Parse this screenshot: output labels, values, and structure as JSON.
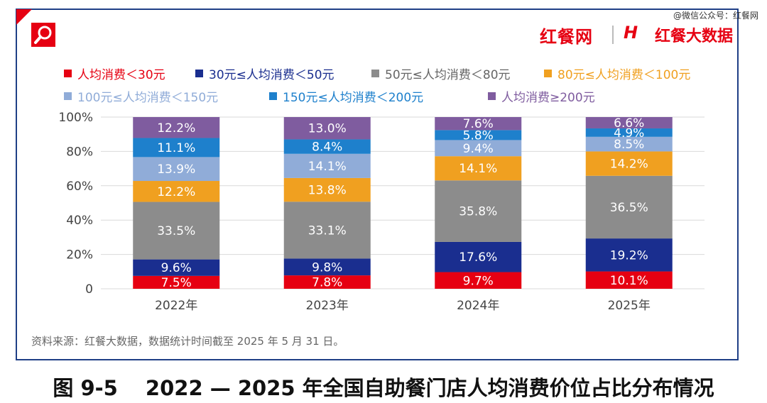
{
  "watermark_source": "@微信公众号：红餐网",
  "brand": {
    "left": "红餐网",
    "right_mark": "H",
    "right": "红餐大数据"
  },
  "legend": [
    {
      "label": "人均消费＜30元",
      "color": "#e60012"
    },
    {
      "label": "30元≤人均消费＜50元",
      "color": "#1a2e8f"
    },
    {
      "label": "50元≤人均消费＜80元",
      "color": "#8c8c8c"
    },
    {
      "label": "80元≤人均消费＜100元",
      "color": "#f0a020"
    },
    {
      "label": "100元≤人均消费＜150元",
      "color": "#90acd8"
    },
    {
      "label": "150元≤人均消费＜200元",
      "color": "#1e80cc"
    },
    {
      "label": "人均消费≥200元",
      "color": "#7f5c9f"
    }
  ],
  "chart_data": {
    "type": "bar",
    "stacked": true,
    "categories": [
      "2022年",
      "2023年",
      "2024年",
      "2025年"
    ],
    "series": [
      {
        "name": "人均消费＜30元",
        "values": [
          7.5,
          7.8,
          9.7,
          10.1
        ],
        "labels": [
          "7.5%",
          "7.8%",
          "9.7%",
          "10.1%"
        ]
      },
      {
        "name": "30元≤人均消费＜50元",
        "values": [
          9.6,
          9.8,
          17.6,
          19.2
        ],
        "labels": [
          "9.6%",
          "9.8%",
          "17.6%",
          "19.2%"
        ]
      },
      {
        "name": "50元≤人均消费＜80元",
        "values": [
          33.5,
          33.1,
          35.8,
          36.5
        ],
        "labels": [
          "33.5%",
          "33.1%",
          "35.8%",
          "36.5%"
        ]
      },
      {
        "name": "80元≤人均消费＜100元",
        "values": [
          12.2,
          13.8,
          14.1,
          14.2
        ],
        "labels": [
          "12.2%",
          "13.8%",
          "14.1%",
          "14.2%"
        ]
      },
      {
        "name": "100元≤人均消费＜150元",
        "values": [
          13.9,
          14.1,
          9.4,
          8.5
        ],
        "labels": [
          "13.9%",
          "14.1%",
          "9.4%",
          "8.5%"
        ]
      },
      {
        "name": "150元≤人均消费＜200元",
        "values": [
          11.1,
          8.4,
          5.8,
          4.9
        ],
        "labels": [
          "11.1%",
          "8.4%",
          "5.8%",
          "4.9%"
        ]
      },
      {
        "name": "人均消费≥200元",
        "values": [
          12.2,
          13.0,
          7.6,
          6.6
        ],
        "labels": [
          "12.2%",
          "13.0%",
          "7.6%",
          "6.6%"
        ]
      }
    ],
    "y_ticks": [
      "0",
      "20%",
      "40%",
      "60%",
      "80%",
      "100%"
    ],
    "ylim": [
      0,
      100
    ],
    "grid": true,
    "legend_position": "top"
  },
  "footnote": "资料来源：红餐大数据，数据统计时间截至 2025 年 5 月 31 日。",
  "caption": "图 9-5　 2022 — 2025 年全国自助餐门店人均消费价位占比分布情况"
}
